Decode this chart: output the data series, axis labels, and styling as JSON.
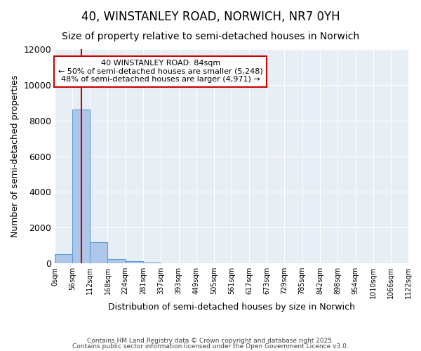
{
  "title": "40, WINSTANLEY ROAD, NORWICH, NR7 0YH",
  "subtitle": "Size of property relative to semi-detached houses in Norwich",
  "xlabel": "Distribution of semi-detached houses by size in Norwich",
  "ylabel": "Number of semi-detached properties",
  "bin_edges": [
    0,
    56,
    112,
    168,
    224,
    281,
    337,
    393,
    449,
    505,
    561,
    617,
    673,
    729,
    785,
    842,
    898,
    954,
    1010,
    1066,
    1122
  ],
  "bar_heights": [
    500,
    8600,
    1200,
    250,
    100,
    50,
    0,
    0,
    0,
    0,
    0,
    0,
    0,
    0,
    0,
    0,
    0,
    0,
    0,
    0
  ],
  "bar_color": "#aec6e8",
  "bar_edge_color": "#5a9fd4",
  "red_line_x": 84,
  "ylim": [
    0,
    12000
  ],
  "annotation_title": "40 WINSTANLEY ROAD: 84sqm",
  "annotation_line1": "← 50% of semi-detached houses are smaller (5,248)",
  "annotation_line2": "48% of semi-detached houses are larger (4,971) →",
  "annotation_box_color": "#cc0000",
  "background_color": "#e8eef5",
  "footer_line1": "Contains HM Land Registry data © Crown copyright and database right 2025.",
  "footer_line2": "Contains public sector information licensed under the Open Government Licence v3.0.",
  "title_fontsize": 12,
  "subtitle_fontsize": 10,
  "tick_labels": [
    "0sqm",
    "56sqm",
    "112sqm",
    "168sqm",
    "224sqm",
    "281sqm",
    "337sqm",
    "393sqm",
    "449sqm",
    "505sqm",
    "561sqm",
    "617sqm",
    "673sqm",
    "729sqm",
    "785sqm",
    "842sqm",
    "898sqm",
    "954sqm",
    "1010sqm",
    "1066sqm",
    "1122sqm"
  ]
}
